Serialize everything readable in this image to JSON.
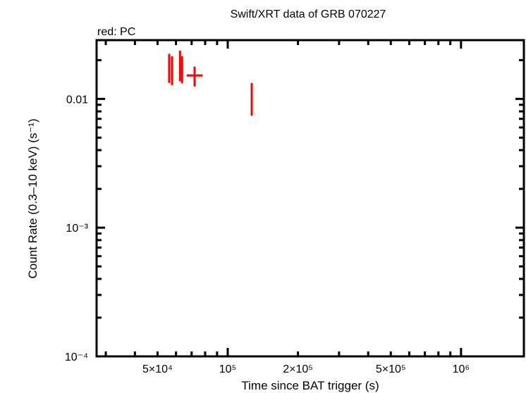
{
  "chart_data": {
    "type": "scatter",
    "title": "Swift/XRT data of GRB 070227",
    "subtitle": "red: PC",
    "xlabel": "Time since BAT trigger (s)",
    "ylabel": "Count Rate (0.3–10 keV) (s⁻¹)",
    "xscale": "log",
    "yscale": "log",
    "xlim": [
      27400,
      1860000
    ],
    "ylim": [
      0.0001,
      0.0286
    ],
    "x_ticks": [
      {
        "value": 50000,
        "label": "5×10⁴"
      },
      {
        "value": 100000,
        "label": "10⁵"
      },
      {
        "value": 200000,
        "label": "2×10⁵"
      },
      {
        "value": 500000,
        "label": "5×10⁵"
      },
      {
        "value": 1000000,
        "label": "10⁶"
      }
    ],
    "y_ticks": [
      {
        "value": 0.01,
        "label": "0.01"
      },
      {
        "value": 0.001,
        "label": "10⁻³"
      },
      {
        "value": 0.0001,
        "label": "10⁻⁴"
      }
    ],
    "grid": false,
    "legend": "none",
    "series": [
      {
        "name": "PC",
        "color": "#ff0000",
        "points": [
          {
            "x": 56100,
            "y": 0.0175,
            "xerr": [
              55600,
              56600
            ],
            "yerr": [
              0.0133,
              0.0224
            ]
          },
          {
            "x": 57700,
            "y": 0.0168,
            "xerr": [
              57200,
              58200
            ],
            "yerr": [
              0.0128,
              0.0214
            ]
          },
          {
            "x": 62400,
            "y": 0.0181,
            "xerr": [
              61800,
              63000
            ],
            "yerr": [
              0.0137,
              0.0237
            ]
          },
          {
            "x": 63700,
            "y": 0.017,
            "xerr": [
              63100,
              64300
            ],
            "yerr": [
              0.0132,
              0.0214
            ]
          },
          {
            "x": 72100,
            "y": 0.0152,
            "xerr": [
              66700,
              78000
            ],
            "yerr": [
              0.0125,
              0.0178
            ]
          },
          {
            "x": 126700,
            "y": 0.0099,
            "xerr": [
              125800,
              127600
            ],
            "yerr": [
              0.0074,
              0.0133
            ]
          }
        ]
      }
    ]
  }
}
